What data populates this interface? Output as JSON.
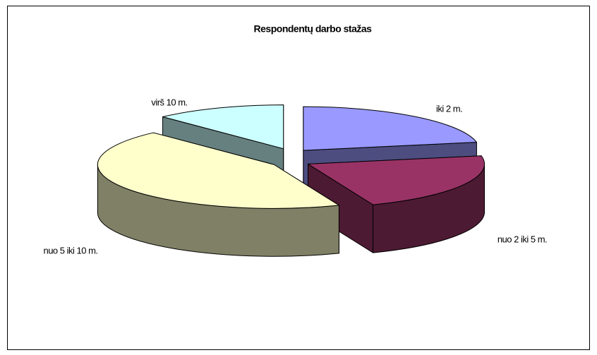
{
  "chart_data": {
    "type": "pie",
    "title": "Respondentų darbo stažas",
    "categories": [
      "iki 2 m.",
      "nuo 2 iki 5 m.",
      "nuo 5 iki 10 m.",
      "virš 10 m."
    ],
    "values": [
      22,
      22,
      44,
      12
    ],
    "colors": [
      "#9999ff",
      "#993366",
      "#ffffcc",
      "#ccffff"
    ],
    "side_colors": [
      "#4d4d80",
      "#4d1a33",
      "#808066",
      "#668080"
    ]
  }
}
